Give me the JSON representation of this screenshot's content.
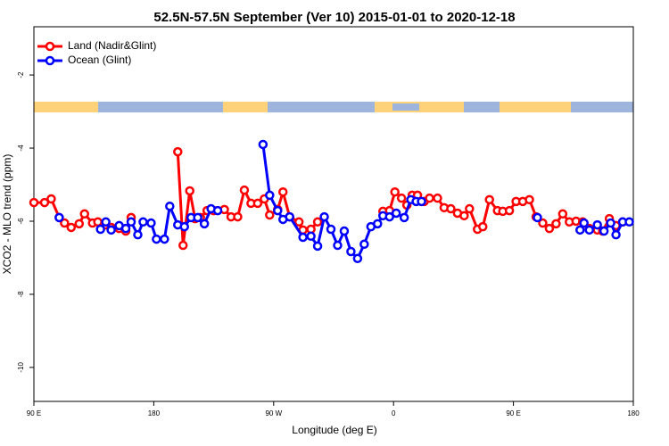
{
  "chart_data": {
    "type": "line",
    "title": "52.5N-57.5N September (Ver 10)   2015-01-01 to 2020-12-18",
    "x_label": "Longitude (deg E)",
    "y_label": "XCO2 - MLO trend (ppm)",
    "xlim": [
      90,
      540
    ],
    "ylim": [
      -10.93,
      -0.68
    ],
    "xticks": [
      {
        "value": 90,
        "label": "90 E"
      },
      {
        "value": 180,
        "label": "180"
      },
      {
        "value": 270,
        "label": "90 W"
      },
      {
        "value": 360,
        "label": "0"
      },
      {
        "value": 450,
        "label": "90 E"
      },
      {
        "value": 540,
        "label": "180"
      }
    ],
    "yticks": [
      -2,
      -4,
      -6,
      -8,
      -10
    ],
    "legend": "top-left",
    "series": [
      {
        "name": "Land (Nadir&Glint)",
        "color": "#ff0000",
        "x": [
          90,
          98,
          103,
          109,
          113,
          118,
          124,
          128,
          134,
          138,
          144,
          148,
          154,
          159,
          163,
          null,
          198,
          202,
          207,
          211,
          215,
          220,
          225,
          233,
          238,
          243,
          248,
          253,
          258,
          263,
          267,
          273,
          277,
          282,
          289,
          292,
          298,
          303,
          null,
          352,
          357,
          361,
          366,
          370,
          374,
          378,
          383,
          387,
          393,
          398,
          403,
          408,
          413,
          417,
          423,
          427,
          432,
          438,
          442,
          447,
          452,
          457,
          462,
          467,
          472,
          477,
          482,
          487,
          492,
          497,
          502,
          507,
          513,
          517,
          522,
          527,
          532
        ],
        "values": [
          -5.49,
          -5.49,
          -5.39,
          -5.9,
          -6.05,
          -6.17,
          -6.07,
          -5.8,
          -6.05,
          -6.02,
          -6.1,
          -6.17,
          -6.2,
          -6.27,
          -5.9,
          null,
          -4.1,
          -6.66,
          -5.17,
          -5.93,
          -5.9,
          -5.71,
          -5.71,
          -5.68,
          -5.88,
          -5.88,
          -5.15,
          -5.51,
          -5.51,
          -5.39,
          -5.83,
          -5.68,
          -5.2,
          -5.88,
          -6.02,
          -6.24,
          -6.22,
          -6.02,
          null,
          -5.73,
          -5.71,
          -5.2,
          -5.37,
          -5.56,
          -5.29,
          -5.29,
          -5.46,
          -5.37,
          -5.37,
          -5.63,
          -5.66,
          -5.78,
          -5.85,
          -5.66,
          -6.22,
          -6.15,
          -5.41,
          -5.71,
          -5.73,
          -5.71,
          -5.46,
          -5.46,
          -5.41,
          -5.88,
          -6.05,
          -6.2,
          -6.07,
          -5.8,
          -6.02,
          -6.0,
          -6.02,
          -6.2,
          -6.24,
          -6.27,
          -5.93,
          -6.12,
          -6.02
        ]
      },
      {
        "name": "Ocean (Glint)",
        "color": "#0000ff",
        "x": [
          109,
          null,
          140,
          144,
          148,
          154,
          159,
          163,
          168,
          172,
          178,
          182,
          188,
          192,
          198,
          203,
          208,
          213,
          218,
          223,
          228,
          null,
          262,
          267,
          273,
          277,
          282,
          292,
          298,
          303,
          308,
          313,
          318,
          323,
          328,
          333,
          338,
          343,
          348,
          352,
          357,
          362,
          368,
          373,
          377,
          381,
          null,
          468,
          null,
          500,
          503,
          507,
          513,
          518,
          523,
          527,
          532,
          537
        ],
        "values": [
          -5.9,
          null,
          -6.22,
          -6.02,
          -6.24,
          -6.12,
          -6.2,
          -6.02,
          -6.37,
          -6.02,
          -6.05,
          -6.49,
          -6.49,
          -5.59,
          -6.1,
          -6.15,
          -5.9,
          -5.9,
          -6.07,
          -5.66,
          -5.71,
          null,
          -3.9,
          -5.29,
          -5.71,
          -5.95,
          -5.88,
          -6.44,
          -6.41,
          -6.68,
          -5.88,
          -6.22,
          -6.66,
          -6.27,
          -6.83,
          -7.02,
          -6.63,
          -6.15,
          -6.07,
          -5.85,
          -5.88,
          -5.78,
          -5.9,
          -5.41,
          -5.46,
          -5.46,
          null,
          -5.9,
          null,
          -6.24,
          -6.05,
          -6.24,
          -6.1,
          -6.27,
          -6.05,
          -6.37,
          -6.02,
          -6.02
        ]
      }
    ]
  }
}
